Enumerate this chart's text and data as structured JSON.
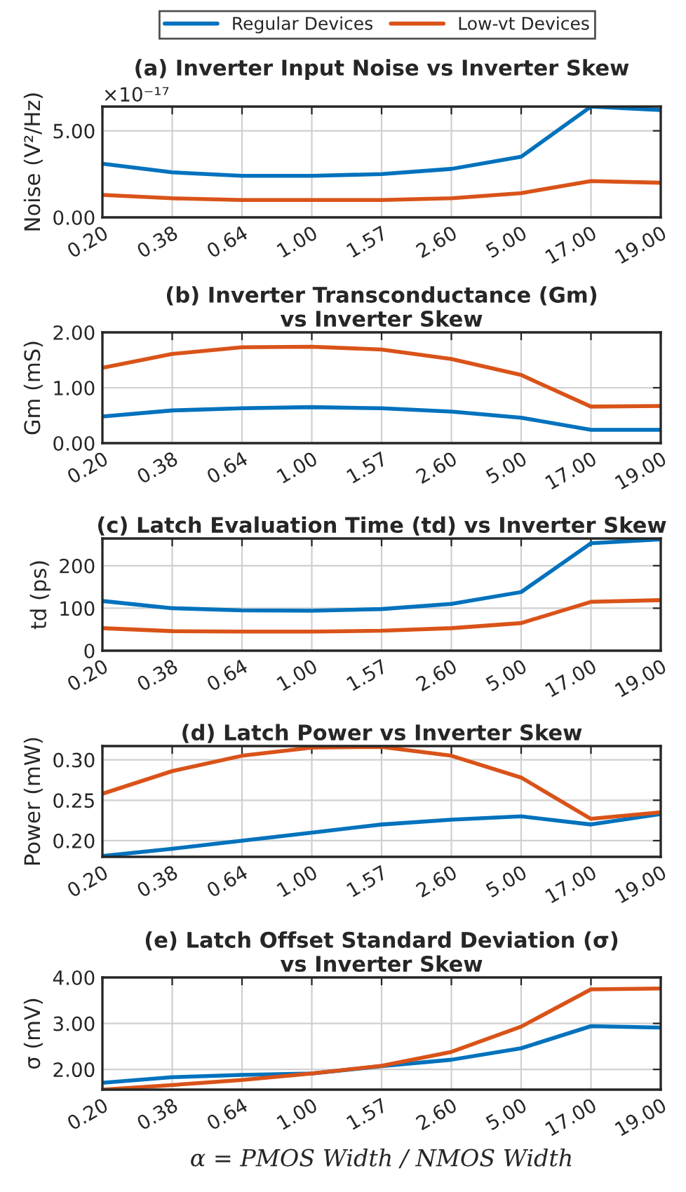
{
  "chart_data": [
    {
      "type": "line",
      "title": "(a) Inverter Input Noise vs Inverter Skew",
      "ylabel": "Noise (V²/Hz)",
      "categories": [
        "0.20",
        "0.38",
        "0.64",
        "1.00",
        "1.57",
        "2.60",
        "5.00",
        "17.00",
        "19.00"
      ],
      "series": [
        {
          "name": "Regular Devices",
          "color": "#0072bd",
          "values": [
            3.1,
            2.6,
            2.4,
            2.4,
            2.5,
            2.8,
            3.5,
            6.4,
            6.2
          ]
        },
        {
          "name": "Low-vt Devices",
          "color": "#d95319",
          "values": [
            1.3,
            1.1,
            1.0,
            1.0,
            1.0,
            1.1,
            1.4,
            2.1,
            2.0
          ]
        }
      ],
      "ylim": [
        0,
        6.4
      ],
      "yticks": [
        {
          "value": 0,
          "label": "0.00"
        },
        {
          "value": 5,
          "label": "5.00"
        }
      ],
      "annotations": [
        "×10⁻¹⁷"
      ],
      "grid": true,
      "legend": "top"
    },
    {
      "type": "line",
      "title": "(b) Inverter Transconductance (Gm)\nvs Inverter Skew",
      "ylabel": "Gm (mS)",
      "categories": [
        "0.20",
        "0.38",
        "0.64",
        "1.00",
        "1.57",
        "2.60",
        "5.00",
        "17.00",
        "19.00"
      ],
      "series": [
        {
          "color": "#0072bd",
          "values": [
            0.48,
            0.59,
            0.63,
            0.65,
            0.63,
            0.57,
            0.46,
            0.24,
            0.24
          ]
        },
        {
          "color": "#d95319",
          "values": [
            1.36,
            1.61,
            1.73,
            1.74,
            1.69,
            1.52,
            1.23,
            0.66,
            0.67
          ]
        }
      ],
      "ylim": [
        0,
        2
      ],
      "yticks": [
        {
          "value": 0,
          "label": "0.00"
        },
        {
          "value": 1,
          "label": "1.00"
        },
        {
          "value": 2,
          "label": "2.00"
        }
      ],
      "grid": true
    },
    {
      "type": "line",
      "title": "(c) Latch Evaluation Time (td) vs Inverter Skew",
      "ylabel": "td (ps)",
      "categories": [
        "0.20",
        "0.38",
        "0.64",
        "1.00",
        "1.57",
        "2.60",
        "5.00",
        "17.00",
        "19.00"
      ],
      "series": [
        {
          "color": "#0072bd",
          "values": [
            117,
            100,
            95,
            94,
            98,
            110,
            138,
            253,
            262
          ]
        },
        {
          "color": "#d95319",
          "values": [
            53,
            46,
            45,
            45,
            47,
            53,
            65,
            115,
            119
          ]
        }
      ],
      "ylim": [
        0,
        264
      ],
      "yticks": [
        0,
        100,
        200
      ],
      "grid": true
    },
    {
      "type": "line",
      "title": "(d) Latch Power vs Inverter Skew",
      "ylabel": "Power (mW)",
      "categories": [
        "0.20",
        "0.38",
        "0.64",
        "1.00",
        "1.57",
        "2.60",
        "5.00",
        "17.00",
        "19.00"
      ],
      "series": [
        {
          "color": "#0072bd",
          "values": [
            0.181,
            0.19,
            0.2,
            0.21,
            0.22,
            0.226,
            0.23,
            0.22,
            0.233
          ]
        },
        {
          "color": "#d95319",
          "values": [
            0.258,
            0.286,
            0.305,
            0.315,
            0.316,
            0.305,
            0.278,
            0.227,
            0.235
          ]
        }
      ],
      "ylim": [
        0.18,
        0.317
      ],
      "yticks": [
        {
          "value": 0.2,
          "label": "0.20"
        },
        {
          "value": 0.25,
          "label": "0.25"
        },
        {
          "value": 0.3,
          "label": "0.30"
        }
      ],
      "grid": true
    },
    {
      "type": "line",
      "title": "(e) Latch Offset Standard Deviation (σ)\nvs Inverter Skew",
      "ylabel": "σ (mV)",
      "xlabel": "α = PMOS Width / NMOS Width",
      "categories": [
        "0.20",
        "0.38",
        "0.64",
        "1.00",
        "1.57",
        "2.60",
        "5.00",
        "17.00",
        "19.00"
      ],
      "series": [
        {
          "color": "#0072bd",
          "values": [
            1.71,
            1.83,
            1.88,
            1.91,
            2.07,
            2.21,
            2.46,
            2.94,
            2.91
          ]
        },
        {
          "color": "#d95319",
          "values": [
            1.56,
            1.66,
            1.77,
            1.91,
            2.08,
            2.38,
            2.93,
            3.74,
            3.76
          ]
        }
      ],
      "ylim": [
        1.56,
        4.0
      ],
      "yticks": [
        {
          "value": 2,
          "label": "2.00"
        },
        {
          "value": 3,
          "label": "3.00"
        },
        {
          "value": 4,
          "label": "4.00"
        }
      ],
      "grid": true
    }
  ]
}
